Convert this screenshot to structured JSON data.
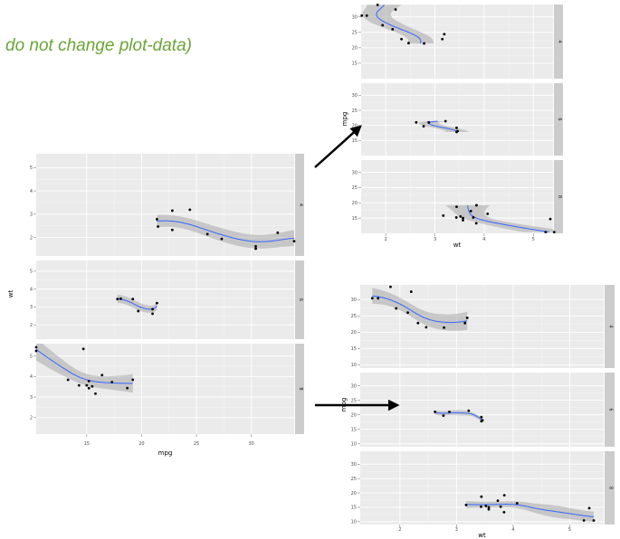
{
  "annotation": {
    "text": "do not change plot-data)"
  },
  "colors": {
    "panel": "#ebebeb",
    "grid": "#ffffff",
    "strip": "#cccccc",
    "point": "#000000",
    "smooth": "#3366ff",
    "ribbon": "#999999",
    "arrow": "#000000"
  },
  "chart_data": [
    {
      "type": "scatter",
      "facet_by": "cyl",
      "facets": [
        "4",
        "6",
        "8"
      ],
      "facet_direction": "rows",
      "xlabel": "mpg",
      "ylabel": "wt",
      "xlim": [
        10.4,
        33.9
      ],
      "xticks": [
        15,
        20,
        25,
        30
      ],
      "ylim": [
        1.2,
        5.6
      ],
      "yticks": [
        2,
        3,
        4,
        5
      ],
      "smooth": "loess",
      "series": [
        {
          "name": "4",
          "x": [
            22.8,
            24.4,
            22.8,
            32.4,
            30.4,
            33.9,
            21.5,
            27.3,
            26.0,
            30.4,
            21.4
          ],
          "y": [
            2.32,
            3.19,
            3.15,
            2.2,
            1.615,
            1.835,
            2.465,
            1.935,
            2.14,
            1.513,
            2.78
          ]
        },
        {
          "name": "6",
          "x": [
            21.0,
            21.0,
            21.4,
            18.1,
            19.2,
            17.8,
            19.7
          ],
          "y": [
            2.62,
            2.875,
            3.215,
            3.46,
            3.44,
            3.44,
            2.77
          ]
        },
        {
          "name": "8",
          "x": [
            18.7,
            14.3,
            16.4,
            17.3,
            15.2,
            10.4,
            10.4,
            14.7,
            15.5,
            15.2,
            13.3,
            19.2,
            15.8,
            15.0
          ],
          "y": [
            3.44,
            3.57,
            4.07,
            3.73,
            3.78,
            5.25,
            5.424,
            5.345,
            3.52,
            3.435,
            3.84,
            3.845,
            3.17,
            3.57
          ]
        }
      ]
    },
    {
      "type": "scatter",
      "facet_by": "cyl",
      "facets": [
        "4",
        "6",
        "8"
      ],
      "facet_direction": "rows",
      "xlabel": "wt",
      "ylabel": "mpg",
      "xlim": [
        1.5,
        5.4
      ],
      "xticks": [
        2,
        3,
        4,
        5
      ],
      "ylim": [
        10,
        34
      ],
      "yticks": [
        15,
        20,
        25,
        30
      ],
      "smooth": "loess",
      "orientation": "y",
      "series": [
        {
          "name": "4",
          "x": [
            2.32,
            3.19,
            3.15,
            2.2,
            1.615,
            1.835,
            2.465,
            1.935,
            2.14,
            1.513,
            2.78
          ],
          "y": [
            22.8,
            24.4,
            22.8,
            32.4,
            30.4,
            33.9,
            21.5,
            27.3,
            26.0,
            30.4,
            21.4
          ]
        },
        {
          "name": "6",
          "x": [
            2.62,
            2.875,
            3.215,
            3.46,
            3.44,
            3.44,
            2.77
          ],
          "y": [
            21.0,
            21.0,
            21.4,
            18.1,
            19.2,
            17.8,
            19.7
          ]
        },
        {
          "name": "8",
          "x": [
            3.44,
            3.57,
            4.07,
            3.73,
            3.78,
            5.25,
            5.424,
            5.345,
            3.52,
            3.435,
            3.84,
            3.845,
            3.17,
            3.57
          ],
          "y": [
            18.7,
            14.3,
            16.4,
            17.3,
            15.2,
            10.4,
            10.4,
            14.7,
            15.5,
            15.2,
            13.3,
            19.2,
            15.8,
            15.0
          ]
        }
      ]
    },
    {
      "type": "scatter",
      "facet_by": "cyl",
      "facets": [
        "4",
        "6",
        "8"
      ],
      "facet_direction": "rows",
      "xlabel": "wt",
      "ylabel": "mpg",
      "xlim": [
        1.3,
        5.6
      ],
      "xticks": [
        2,
        3,
        4,
        5
      ],
      "ylim": [
        9,
        34.5
      ],
      "yticks": [
        10,
        15,
        20,
        25,
        30
      ],
      "smooth": "loess",
      "series": [
        {
          "name": "4",
          "x": [
            2.32,
            3.19,
            3.15,
            2.2,
            1.615,
            1.835,
            2.465,
            1.935,
            2.14,
            1.513,
            2.78
          ],
          "y": [
            22.8,
            24.4,
            22.8,
            32.4,
            30.4,
            33.9,
            21.5,
            27.3,
            26.0,
            30.4,
            21.4
          ]
        },
        {
          "name": "6",
          "x": [
            2.62,
            2.875,
            3.215,
            3.46,
            3.44,
            3.44,
            2.77
          ],
          "y": [
            21.0,
            21.0,
            21.4,
            18.1,
            19.2,
            17.8,
            19.7
          ]
        },
        {
          "name": "8",
          "x": [
            3.44,
            3.57,
            4.07,
            3.73,
            3.78,
            5.25,
            5.424,
            5.345,
            3.52,
            3.435,
            3.84,
            3.845,
            3.17,
            3.57
          ],
          "y": [
            18.7,
            14.3,
            16.4,
            17.3,
            15.2,
            10.4,
            10.4,
            14.7,
            15.5,
            15.2,
            13.3,
            19.2,
            15.8,
            15.0
          ]
        }
      ]
    }
  ]
}
